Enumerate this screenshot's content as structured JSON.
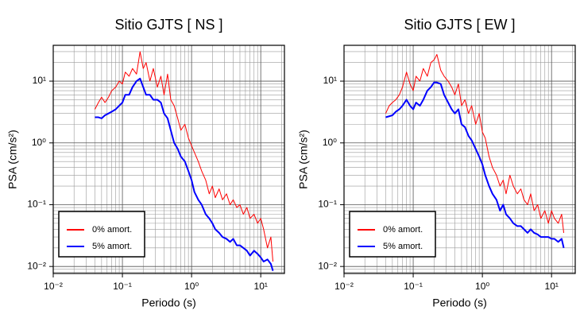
{
  "chart_data": [
    {
      "type": "line",
      "title": "Sitio GJTS [ NS ]",
      "x_label": "Periodo (s)",
      "y_label": "PSA (cm/s²)",
      "x": [
        0.04,
        0.045,
        0.05,
        0.056,
        0.063,
        0.07,
        0.08,
        0.09,
        0.1,
        0.11,
        0.125,
        0.14,
        0.16,
        0.18,
        0.2,
        0.22,
        0.25,
        0.28,
        0.32,
        0.36,
        0.4,
        0.45,
        0.5,
        0.56,
        0.63,
        0.7,
        0.8,
        0.9,
        1.0,
        1.1,
        1.25,
        1.4,
        1.6,
        1.8,
        2.0,
        2.2,
        2.5,
        2.8,
        3.2,
        3.6,
        4.0,
        4.5,
        5.0,
        5.6,
        6.3,
        7.0,
        8.0,
        9.0,
        10,
        11,
        12.5,
        14,
        15
      ],
      "series": [
        {
          "name": "0% amort.",
          "color": "#ff0000",
          "values": [
            3.5,
            4.5,
            5.5,
            4.5,
            5.5,
            7,
            8,
            10,
            9,
            14,
            12,
            16,
            13,
            30,
            16,
            20,
            10,
            16,
            8,
            12,
            6,
            13,
            5,
            4,
            2.5,
            1.6,
            2.0,
            1.2,
            0.9,
            0.7,
            0.5,
            0.35,
            0.25,
            0.15,
            0.2,
            0.13,
            0.18,
            0.12,
            0.15,
            0.1,
            0.12,
            0.09,
            0.1,
            0.07,
            0.09,
            0.06,
            0.07,
            0.05,
            0.06,
            0.04,
            0.02,
            0.03,
            0.012
          ]
        },
        {
          "name": "5% amort.",
          "color": "#0000ff",
          "values": [
            2.6,
            2.6,
            2.5,
            2.8,
            3,
            3.2,
            3.5,
            4,
            4.5,
            6,
            6,
            8,
            10,
            11,
            8,
            6,
            6,
            5,
            5,
            4.5,
            3,
            2.5,
            1.6,
            1.0,
            0.8,
            0.6,
            0.5,
            0.35,
            0.25,
            0.16,
            0.12,
            0.1,
            0.07,
            0.06,
            0.05,
            0.04,
            0.035,
            0.03,
            0.028,
            0.025,
            0.028,
            0.022,
            0.022,
            0.02,
            0.018,
            0.015,
            0.018,
            0.016,
            0.014,
            0.012,
            0.013,
            0.011,
            0.0085
          ]
        }
      ],
      "xlim": [
        0.01,
        22
      ],
      "ylim": [
        0.0077,
        38
      ],
      "xticks": [
        {
          "value": 0.01,
          "label": "10⁻²"
        },
        {
          "value": 0.1,
          "label": "10⁻¹"
        },
        {
          "value": 1,
          "label": "10⁰"
        },
        {
          "value": 10,
          "label": "10¹"
        }
      ],
      "yticks": [
        {
          "value": 0.01,
          "label": "10⁻²"
        },
        {
          "value": 0.1,
          "label": "10⁻¹"
        },
        {
          "value": 1,
          "label": "10⁰"
        },
        {
          "value": 10,
          "label": "10¹"
        }
      ],
      "log_x": true,
      "log_y": true,
      "grid": true,
      "legend": "lower left"
    },
    {
      "type": "line",
      "title": "Sitio GJTS [ EW ]",
      "x_label": "Periodo (s)",
      "y_label": "PSA (cm/s²)",
      "x": [
        0.04,
        0.045,
        0.05,
        0.056,
        0.063,
        0.07,
        0.08,
        0.09,
        0.1,
        0.11,
        0.125,
        0.14,
        0.16,
        0.18,
        0.2,
        0.22,
        0.25,
        0.28,
        0.32,
        0.36,
        0.4,
        0.45,
        0.5,
        0.56,
        0.63,
        0.7,
        0.8,
        0.9,
        1.0,
        1.1,
        1.25,
        1.4,
        1.6,
        1.8,
        2.0,
        2.2,
        2.5,
        2.8,
        3.2,
        3.6,
        4.0,
        4.5,
        5.0,
        5.6,
        6.3,
        7.0,
        8.0,
        9.0,
        10,
        11,
        12.5,
        14,
        15
      ],
      "series": [
        {
          "name": "0% amort.",
          "color": "#ff0000",
          "values": [
            3.0,
            4,
            4.5,
            5,
            6,
            8,
            14,
            9,
            7,
            12,
            10,
            16,
            12,
            20,
            22,
            27,
            15,
            12,
            10,
            8,
            6,
            9,
            4,
            5,
            3,
            4,
            2,
            3,
            1.5,
            1.2,
            0.6,
            0.4,
            0.3,
            0.2,
            0.25,
            0.15,
            0.3,
            0.2,
            0.15,
            0.18,
            0.12,
            0.1,
            0.15,
            0.08,
            0.1,
            0.06,
            0.08,
            0.05,
            0.08,
            0.06,
            0.05,
            0.07,
            0.035
          ]
        },
        {
          "name": "5% amort.",
          "color": "#0000ff",
          "values": [
            2.6,
            2.7,
            2.8,
            3.2,
            3.5,
            4,
            5,
            4,
            3.5,
            4.5,
            4,
            5,
            7,
            8,
            9.5,
            9.5,
            9,
            6,
            4.5,
            3.5,
            3,
            3.5,
            2,
            1.8,
            1.3,
            1.1,
            0.8,
            0.6,
            0.45,
            0.3,
            0.2,
            0.15,
            0.12,
            0.08,
            0.1,
            0.07,
            0.06,
            0.05,
            0.045,
            0.045,
            0.04,
            0.035,
            0.04,
            0.035,
            0.033,
            0.03,
            0.03,
            0.03,
            0.028,
            0.028,
            0.025,
            0.028,
            0.02
          ]
        }
      ],
      "xlim": [
        0.01,
        22
      ],
      "ylim": [
        0.0077,
        38
      ],
      "xticks": [
        {
          "value": 0.01,
          "label": "10⁻²"
        },
        {
          "value": 0.1,
          "label": "10⁻¹"
        },
        {
          "value": 1,
          "label": "10⁰"
        },
        {
          "value": 10,
          "label": "10¹"
        }
      ],
      "yticks": [
        {
          "value": 0.01,
          "label": "10⁻²"
        },
        {
          "value": 0.1,
          "label": "10⁻¹"
        },
        {
          "value": 1,
          "label": "10⁰"
        },
        {
          "value": 10,
          "label": "10¹"
        }
      ],
      "log_x": true,
      "log_y": true,
      "grid": true,
      "legend": "lower left"
    }
  ]
}
